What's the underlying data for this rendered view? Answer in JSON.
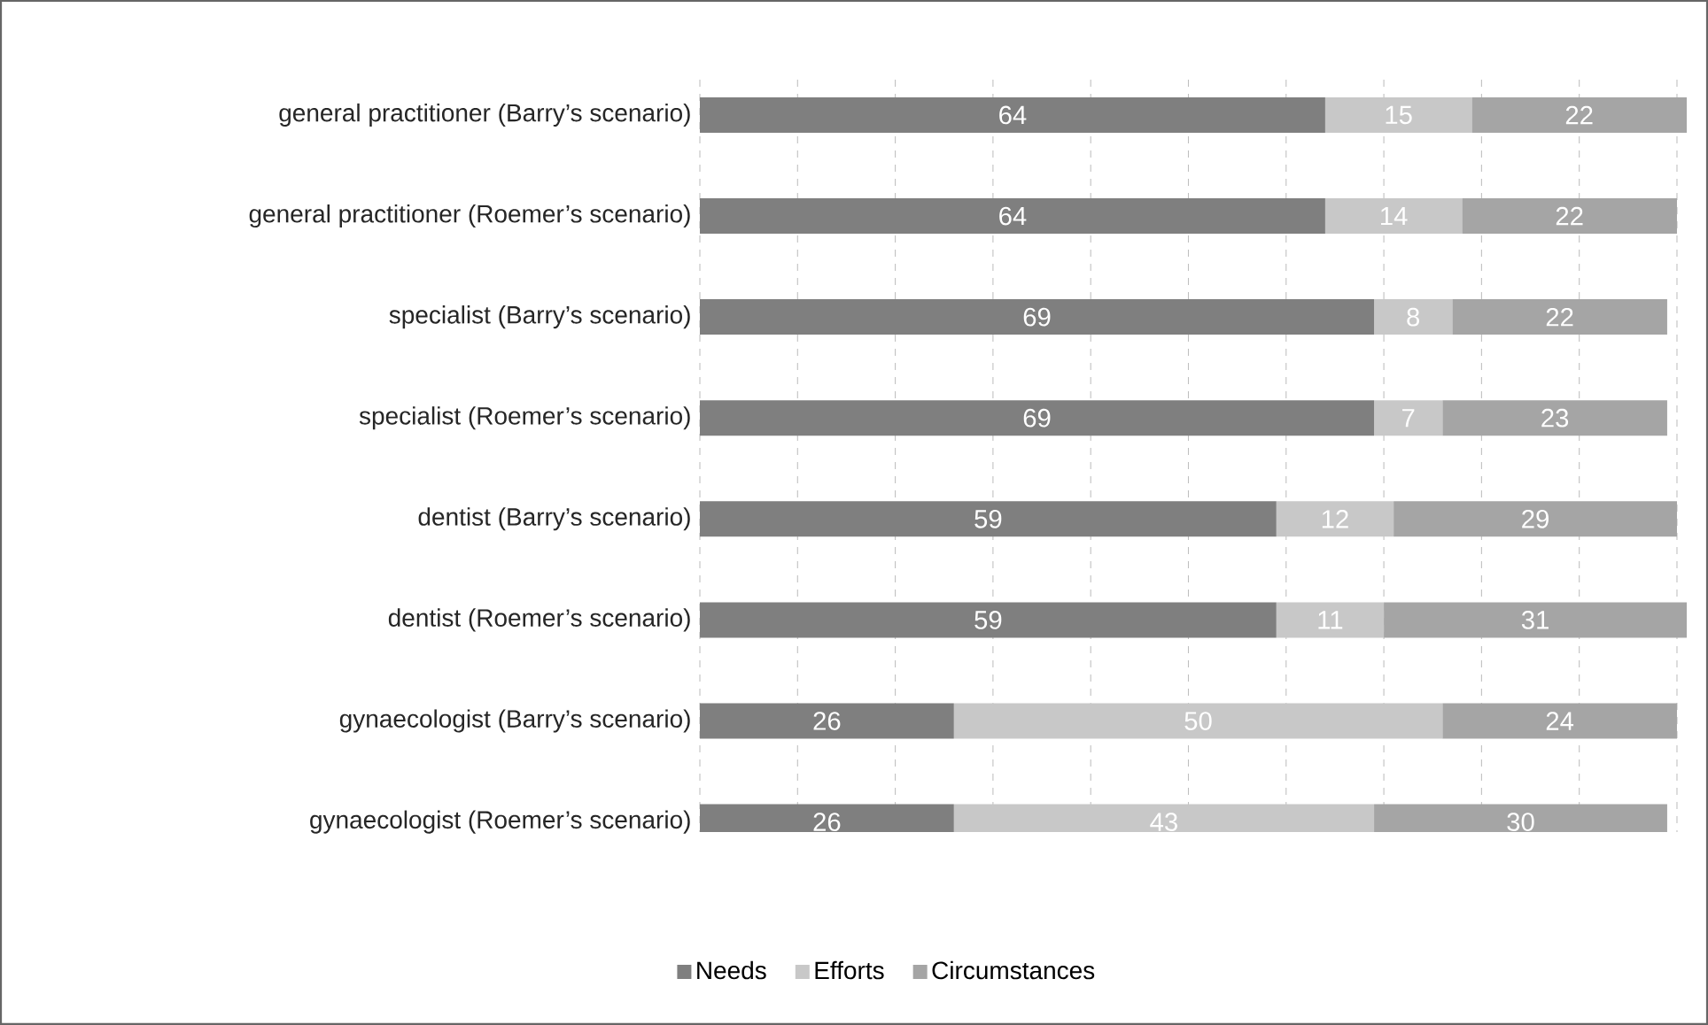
{
  "chart_data": {
    "type": "bar",
    "orientation": "horizontal",
    "stacked": true,
    "data_labels": true,
    "categories": [
      "general practitioner (Barry’s scenario)",
      "general practitioner (Roemer’s scenario)",
      "specialist (Barry’s scenario)",
      "specialist (Roemer’s scenario)",
      "dentist (Barry’s scenario)",
      "dentist (Roemer’s scenario)",
      "gynaecologist (Barry’s scenario)",
      "gynaecologist (Roemer’s scenario)"
    ],
    "series": [
      {
        "name": "Needs",
        "color": "#7f7f7f",
        "values": [
          64,
          64,
          69,
          69,
          59,
          59,
          26,
          26
        ]
      },
      {
        "name": "Efforts",
        "color": "#c8c8c8",
        "values": [
          15,
          14,
          8,
          7,
          12,
          11,
          50,
          43
        ]
      },
      {
        "name": "Circumstances",
        "color": "#a5a5a5",
        "values": [
          22,
          22,
          22,
          23,
          29,
          31,
          24,
          30
        ]
      }
    ],
    "grid": "x",
    "tick_labels": "y",
    "legend": "bottom"
  }
}
